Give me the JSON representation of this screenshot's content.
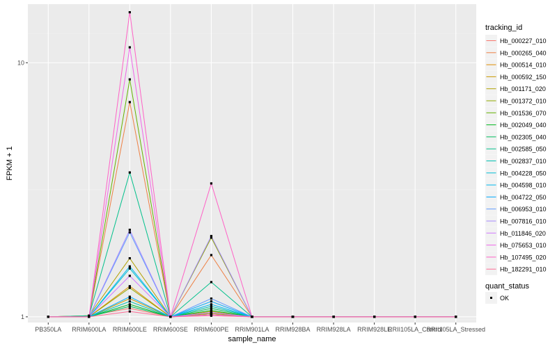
{
  "chart_data": {
    "type": "line",
    "xlabel": "sample_name",
    "ylabel": "FPKM + 1",
    "y_scale": "log10",
    "ylim": [
      0.95,
      17
    ],
    "y_ticks": [
      {
        "value": 1,
        "label": "1"
      },
      {
        "value": 10,
        "label": "10"
      }
    ],
    "categories": [
      "PB350LA",
      "RRIM600LA",
      "RRIM600LE",
      "RRIM600SE",
      "RRIM600PE",
      "RRIM901LA",
      "RRIM928BA",
      "RRIM928LA",
      "RRIM928LE",
      "RRII105LA_Control",
      "RRII105LA_Stressed"
    ],
    "legend": {
      "title": "tracking_id",
      "shape_title": "quant_status",
      "shape_label": "OK"
    },
    "series": [
      {
        "name": "Hb_000227_010",
        "color": "#F8766D",
        "values": [
          1,
          1.01,
          1.08,
          1,
          1.03,
          1,
          1,
          1,
          1,
          1,
          1
        ]
      },
      {
        "name": "Hb_000265_040",
        "color": "#EE8044",
        "values": [
          1,
          1,
          7.0,
          1,
          1.75,
          1,
          1,
          1,
          1,
          1,
          1
        ]
      },
      {
        "name": "Hb_000514_010",
        "color": "#DE8C00",
        "values": [
          1,
          1,
          1.32,
          1,
          1.02,
          1,
          1,
          1,
          1,
          1,
          1
        ]
      },
      {
        "name": "Hb_000592_150",
        "color": "#C99800",
        "values": [
          1,
          1,
          1.18,
          1,
          1.05,
          1,
          1,
          1,
          1,
          1,
          1
        ]
      },
      {
        "name": "Hb_001171_020",
        "color": "#B0A100",
        "values": [
          1,
          1.01,
          1.7,
          1,
          1.03,
          1,
          1,
          1,
          1,
          1,
          1
        ]
      },
      {
        "name": "Hb_001372_010",
        "color": "#91AA00",
        "values": [
          1,
          1,
          1.3,
          1,
          2.05,
          1,
          1,
          1,
          1,
          1,
          1
        ]
      },
      {
        "name": "Hb_001536_070",
        "color": "#64B200",
        "values": [
          1,
          1,
          8.6,
          1,
          1.02,
          1,
          1,
          1,
          1,
          1,
          1
        ]
      },
      {
        "name": "Hb_002049_040",
        "color": "#00B81F",
        "values": [
          1,
          1,
          1.12,
          1,
          1.06,
          1,
          1,
          1,
          1,
          1,
          1
        ]
      },
      {
        "name": "Hb_002305_040",
        "color": "#00BD5C",
        "values": [
          1,
          1,
          1.1,
          1,
          1.08,
          1,
          1,
          1,
          1,
          1,
          1
        ]
      },
      {
        "name": "Hb_002585_050",
        "color": "#00C08B",
        "values": [
          1,
          1.01,
          3.7,
          1,
          1.37,
          1,
          1,
          1,
          1,
          1,
          1
        ]
      },
      {
        "name": "Hb_002837_010",
        "color": "#00C1B2",
        "values": [
          1,
          1,
          1.15,
          1,
          1.1,
          1,
          1,
          1,
          1,
          1,
          1
        ]
      },
      {
        "name": "Hb_004228_050",
        "color": "#00BFD4",
        "values": [
          1,
          1,
          1.55,
          1,
          1.04,
          1,
          1,
          1,
          1,
          1,
          1
        ]
      },
      {
        "name": "Hb_004598_010",
        "color": "#00B8EE",
        "values": [
          1,
          1,
          1.58,
          1,
          1.12,
          1,
          1,
          1,
          1,
          1,
          1
        ]
      },
      {
        "name": "Hb_004722_050",
        "color": "#00ABFD",
        "values": [
          1,
          1,
          1.2,
          1,
          1.15,
          1,
          1,
          1,
          1,
          1,
          1
        ]
      },
      {
        "name": "Hb_006953_010",
        "color": "#619CFF",
        "values": [
          1,
          1,
          2.15,
          1,
          1.18,
          1,
          1,
          1,
          1,
          1,
          1
        ]
      },
      {
        "name": "Hb_007816_010",
        "color": "#A58AFF",
        "values": [
          1,
          1,
          2.2,
          1,
          2.08,
          1,
          1,
          1,
          1,
          1,
          1
        ]
      },
      {
        "name": "Hb_011846_020",
        "color": "#D078FF",
        "values": [
          1,
          1,
          1.45,
          1,
          1.04,
          1,
          1,
          1,
          1,
          1,
          1
        ]
      },
      {
        "name": "Hb_075653_010",
        "color": "#F066EA",
        "values": [
          1,
          1,
          11.5,
          1,
          1.02,
          1,
          1,
          1,
          1,
          1,
          1
        ]
      },
      {
        "name": "Hb_107495_020",
        "color": "#FF61C6",
        "values": [
          1,
          1,
          15.8,
          1,
          3.35,
          1,
          1,
          1,
          1,
          1,
          1
        ]
      },
      {
        "name": "Hb_182291_010",
        "color": "#FF6B96",
        "values": [
          1,
          1,
          1.05,
          1,
          1.01,
          1,
          1,
          1,
          1,
          1,
          1
        ]
      }
    ]
  }
}
